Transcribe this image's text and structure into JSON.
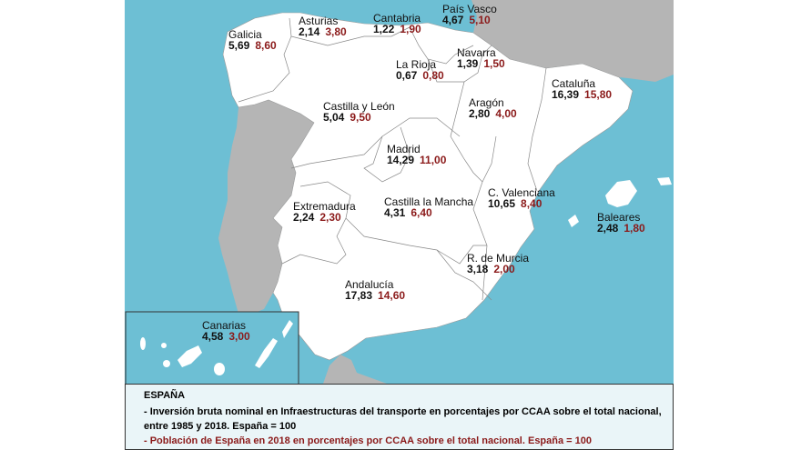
{
  "colors": {
    "sea": "#6dbfd4",
    "spain": "#ffffff",
    "neighbors": "#b5b5b5",
    "inversion": "#111111",
    "poblacion": "#8b1a1a"
  },
  "regions": [
    {
      "name": "Galicia",
      "inversion": "5,69",
      "poblacion": "8,60"
    },
    {
      "name": "Asturias",
      "inversion": "2,14",
      "poblacion": "3,80"
    },
    {
      "name": "Cantabria",
      "inversion": "1,22",
      "poblacion": "1,90"
    },
    {
      "name": "País Vasco",
      "inversion": "4,67",
      "poblacion": "5,10"
    },
    {
      "name": "Navarra",
      "inversion": "1,39",
      "poblacion": "1,50"
    },
    {
      "name": "La Rioja",
      "inversion": "0,67",
      "poblacion": "0,80"
    },
    {
      "name": "Cataluña",
      "inversion": "16,39",
      "poblacion": "15,80"
    },
    {
      "name": "Castilla y León",
      "inversion": "5,04",
      "poblacion": "9,50"
    },
    {
      "name": "Aragón",
      "inversion": "2,80",
      "poblacion": "4,00"
    },
    {
      "name": "Madrid",
      "inversion": "14,29",
      "poblacion": "11,00"
    },
    {
      "name": "C. Valenciana",
      "inversion": "10,65",
      "poblacion": "8,40"
    },
    {
      "name": "Extremadura",
      "inversion": "2,24",
      "poblacion": "2,30"
    },
    {
      "name": "Castilla la Mancha",
      "inversion": "4,31",
      "poblacion": "6,40"
    },
    {
      "name": "Baleares",
      "inversion": "2,48",
      "poblacion": "1,80"
    },
    {
      "name": "R. de Murcia",
      "inversion": "3,18",
      "poblacion": "2,00"
    },
    {
      "name": "Andalucía",
      "inversion": "17,83",
      "poblacion": "14,60"
    },
    {
      "name": "Canarias",
      "inversion": "4,58",
      "poblacion": "3,00"
    }
  ],
  "legend": {
    "title": "ESPAÑA",
    "line1": "- Inversión bruta nominal en Infraestructuras del transporte en porcentajes por CCAA sobre el total nacional,",
    "line2": "entre 1985 y 2018. España = 100",
    "line3": "- Población de España en 2018 en porcentajes por CCAA sobre el total nacional. España = 100"
  }
}
